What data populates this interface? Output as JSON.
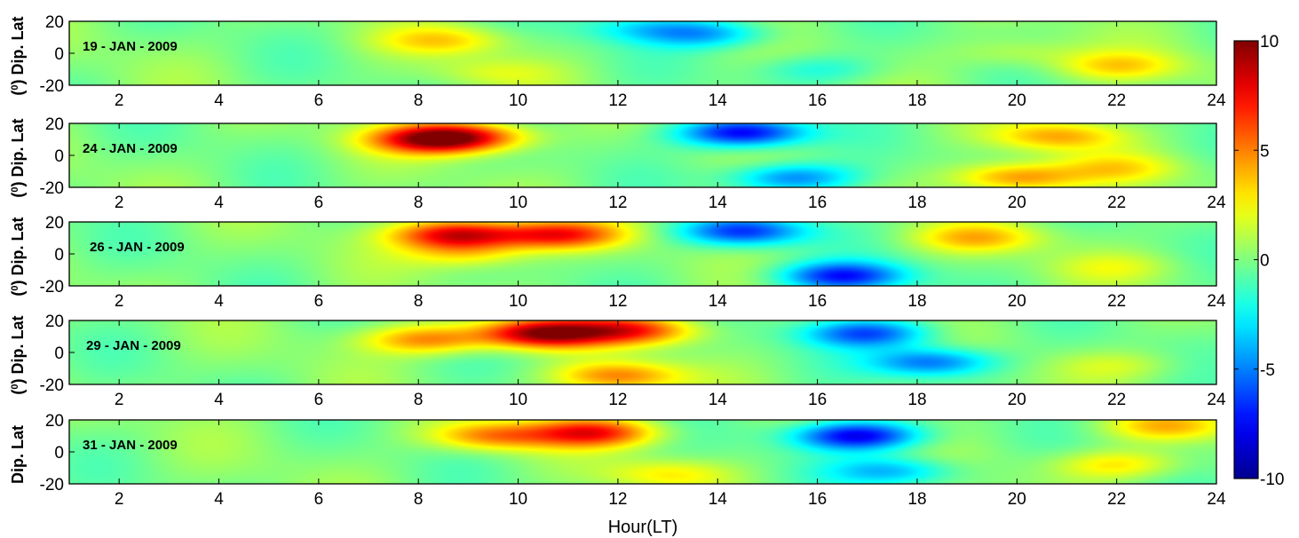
{
  "figure": {
    "xlabel": "Hour(LT)",
    "ylabel_prefix": "(",
    "ylabel_sup": "0",
    "ylabel_suffix": ") Dip. Lat",
    "ylabel_plain": "Dip. Lat"
  },
  "chart_data": {
    "type": "heatmap",
    "colormap": "jet",
    "x_ticks": [
      2,
      4,
      6,
      8,
      10,
      12,
      14,
      16,
      18,
      20,
      22,
      24
    ],
    "y_ticks": [
      20,
      0,
      -20
    ],
    "xlim": [
      1,
      24
    ],
    "ylim": [
      -20,
      20
    ],
    "colorbar": {
      "ticks": [
        10,
        5,
        0,
        -5,
        -10
      ],
      "range": [
        -10,
        10
      ]
    },
    "colors": [
      "#00008f",
      "#0000ff",
      "#00ffff",
      "#ffff00",
      "#ff0000",
      "#800000"
    ],
    "panels": [
      {
        "label": "19 - JAN - 2009",
        "blobs": [
          {
            "h": 8.5,
            "lat": 8,
            "value": 3.0
          },
          {
            "h": 9.5,
            "lat": -12,
            "value": 1.5
          },
          {
            "h": 13.8,
            "lat": 12,
            "value": -4.0
          },
          {
            "h": 12.5,
            "lat": 16,
            "value": -2.5
          },
          {
            "h": 16,
            "lat": -10,
            "value": -2.0
          },
          {
            "h": 22,
            "lat": -8,
            "value": 3.0
          },
          {
            "h": 20,
            "lat": 0,
            "value": 1.5
          }
        ]
      },
      {
        "label": "24 - JAN - 2009",
        "blobs": [
          {
            "h": 8.3,
            "lat": 10,
            "value": 8.0
          },
          {
            "h": 9.0,
            "lat": 12,
            "value": 5.0
          },
          {
            "h": 14.5,
            "lat": 14,
            "value": -8.0
          },
          {
            "h": 15.5,
            "lat": -14,
            "value": -5.0
          },
          {
            "h": 20.8,
            "lat": 12,
            "value": 4.0
          },
          {
            "h": 20,
            "lat": -14,
            "value": 5.0
          },
          {
            "h": 22,
            "lat": -8,
            "value": 2.5
          }
        ]
      },
      {
        "label": "26 - JAN - 2009",
        "blobs": [
          {
            "h": 8.8,
            "lat": 12,
            "value": 8.5
          },
          {
            "h": 10.8,
            "lat": 12,
            "value": 7.0
          },
          {
            "h": 9.0,
            "lat": 0,
            "value": 3.0
          },
          {
            "h": 14.5,
            "lat": 14,
            "value": -6.5
          },
          {
            "h": 16.5,
            "lat": -14,
            "value": -7.0
          },
          {
            "h": 19.2,
            "lat": 10,
            "value": 3.5
          },
          {
            "h": 22,
            "lat": -8,
            "value": 1.5
          }
        ]
      },
      {
        "label": "29 - JAN - 2009",
        "blobs": [
          {
            "h": 10.5,
            "lat": 12,
            "value": 9.5
          },
          {
            "h": 12.3,
            "lat": 14,
            "value": 6.5
          },
          {
            "h": 8.2,
            "lat": 8,
            "value": 5.0
          },
          {
            "h": 12,
            "lat": -15,
            "value": 5.0
          },
          {
            "h": 17.0,
            "lat": 12,
            "value": -6.0
          },
          {
            "h": 18.3,
            "lat": -6,
            "value": -5.5
          },
          {
            "h": 22,
            "lat": -8,
            "value": 1.5
          }
        ]
      },
      {
        "label": "31 - JAN - 2009",
        "blobs": [
          {
            "h": 11.5,
            "lat": 12,
            "value": 7.0
          },
          {
            "h": 9.5,
            "lat": 10,
            "value": 5.0
          },
          {
            "h": 13,
            "lat": -14,
            "value": 2.5
          },
          {
            "h": 16.8,
            "lat": 10,
            "value": -8.0
          },
          {
            "h": 17.5,
            "lat": -12,
            "value": -4.0
          },
          {
            "h": 22,
            "lat": -8,
            "value": 3.0
          },
          {
            "h": 23,
            "lat": 16,
            "value": 3.5
          }
        ]
      }
    ]
  }
}
